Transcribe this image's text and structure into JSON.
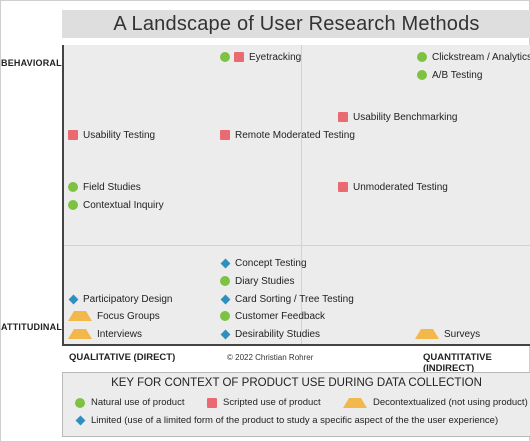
{
  "title": "A Landscape of User Research Methods",
  "axes": {
    "y_top": "BEHAVIORAL",
    "y_bottom": "ATTITUDINAL",
    "x_left": "QUALITATIVE (DIRECT)",
    "x_right": "QUANTITATIVE (INDIRECT)"
  },
  "copyright": "© 2022 Christian Rohrer",
  "colors": {
    "natural": "#7dc242",
    "scripted": "#ea6a72",
    "decontextualized": "#f2b84b",
    "limited": "#2f8fbf"
  },
  "methods": [
    {
      "label": "Eyetracking",
      "markers": [
        "natural",
        "scripted"
      ]
    },
    {
      "label": "Clickstream / Analytics",
      "markers": [
        "natural"
      ]
    },
    {
      "label": "A/B Testing",
      "markers": [
        "natural"
      ]
    },
    {
      "label": "Usability Benchmarking",
      "markers": [
        "scripted"
      ]
    },
    {
      "label": "Usability Testing",
      "markers": [
        "scripted"
      ]
    },
    {
      "label": "Remote Moderated Testing",
      "markers": [
        "scripted"
      ]
    },
    {
      "label": "Field Studies",
      "markers": [
        "natural"
      ]
    },
    {
      "label": "Unmoderated Testing",
      "markers": [
        "scripted"
      ]
    },
    {
      "label": "Contextual Inquiry",
      "markers": [
        "natural"
      ]
    },
    {
      "label": "Concept Testing",
      "markers": [
        "limited"
      ]
    },
    {
      "label": "Diary Studies",
      "markers": [
        "natural"
      ]
    },
    {
      "label": "Participatory Design",
      "markers": [
        "limited"
      ]
    },
    {
      "label": "Card Sorting / Tree Testing",
      "markers": [
        "limited"
      ]
    },
    {
      "label": "Focus Groups",
      "markers": [
        "decontextualized"
      ]
    },
    {
      "label": "Customer Feedback",
      "markers": [
        "natural"
      ]
    },
    {
      "label": "Interviews",
      "markers": [
        "decontextualized"
      ]
    },
    {
      "label": "Desirability Studies",
      "markers": [
        "limited"
      ]
    },
    {
      "label": "Surveys",
      "markers": [
        "decontextualized"
      ]
    }
  ],
  "key": {
    "title": "KEY FOR CONTEXT OF PRODUCT USE DURING DATA COLLECTION",
    "items": [
      {
        "type": "natural",
        "shape": "circle",
        "label": "Natural use of product"
      },
      {
        "type": "scripted",
        "shape": "square",
        "label": "Scripted use of product"
      },
      {
        "type": "decontextualized",
        "shape": "triangle",
        "label": "Decontextualized (not using product)"
      },
      {
        "type": "limited",
        "shape": "diamond",
        "label": "Limited (use of a limited form of the product to study a specific aspect of the the user experience)"
      }
    ]
  }
}
